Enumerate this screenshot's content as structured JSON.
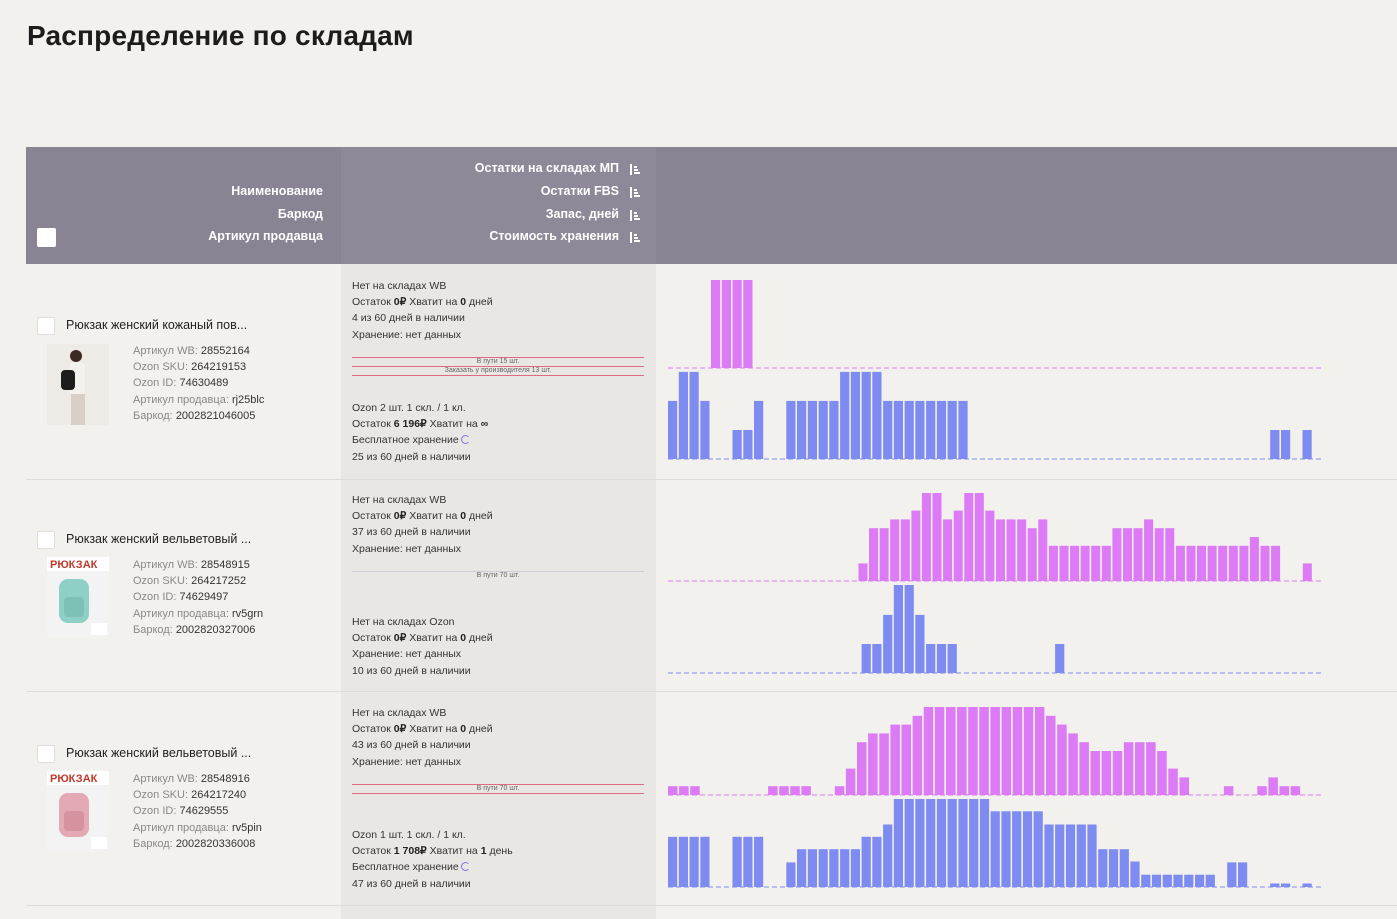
{
  "page_title": "Распределение по складам",
  "header": {
    "col_name": "Наименование",
    "col_barcode": "Баркод",
    "col_article": "Артикул продавца",
    "col_mp_stock": "Остатки на складах МП",
    "col_fbs_stock": "Остатки FBS",
    "col_reserve_days": "Запас, дней",
    "col_storage_cost": "Стоимость хранения"
  },
  "colors": {
    "wb_bar": "#dc7bf5",
    "ozon_bar": "#7e8cf2",
    "header_bg": "#8a8394"
  },
  "products": [
    {
      "name": "Рюкзак женский кожаный пов...",
      "wb_article_label": "Артикул WB:",
      "wb_article": "28552164",
      "ozon_sku_label": "Ozon SKU:",
      "ozon_sku": "264219153",
      "ozon_id_label": "Ozon ID:",
      "ozon_id": "74630489",
      "seller_article_label": "Артикул продавца:",
      "seller_article": "rj25blc",
      "barcode_label": "Баркод:",
      "barcode": "2002821046005",
      "wb": {
        "l1": "Нет на складах WB",
        "l2a": "Остаток ",
        "l2b": "0₽",
        "l2c": " Хватит на ",
        "l2d": "0",
        "l2e": " дней",
        "l3": "4 из 60 дней в наличии",
        "l4": "Хранение: нет данных"
      },
      "transit": "В пути 15 шт.",
      "order": "Заказать у производителя 13 шт.",
      "ozon": {
        "l1": "Ozon 2 шт. 1 скл. / 1 кл.",
        "l2a": "Остаток ",
        "l2b": "6 196₽",
        "l2c": " Хватит на ",
        "l2d": "∞",
        "l2e": "",
        "l3": "Бесплатное хранение",
        "l4": "25 из 60 дней в наличии"
      },
      "wb_series": [
        0,
        0,
        0,
        0,
        1,
        1,
        1,
        1,
        0,
        0,
        0,
        0,
        0,
        0,
        0,
        0,
        0,
        0,
        0,
        0,
        0,
        0,
        0,
        0,
        0,
        0,
        0,
        0,
        0,
        0,
        0,
        0,
        0,
        0,
        0,
        0,
        0,
        0,
        0,
        0,
        0,
        0,
        0,
        0,
        0,
        0,
        0,
        0,
        0,
        0,
        0,
        0,
        0,
        0,
        0,
        0,
        0,
        0,
        0,
        0,
        0
      ],
      "ozon_series": [
        0.66,
        0.99,
        0.99,
        0.66,
        0,
        0,
        0.33,
        0.33,
        0.66,
        0,
        0,
        0.66,
        0.66,
        0.66,
        0.66,
        0.66,
        0.99,
        0.99,
        0.99,
        0.99,
        0.66,
        0.66,
        0.66,
        0.66,
        0.66,
        0.66,
        0.66,
        0.66,
        0,
        0,
        0,
        0,
        0,
        0,
        0,
        0,
        0,
        0,
        0,
        0,
        0,
        0,
        0,
        0,
        0,
        0,
        0,
        0,
        0,
        0,
        0,
        0,
        0,
        0,
        0,
        0,
        0.33,
        0.33,
        0,
        0.33,
        0
      ]
    },
    {
      "name": "Рюкзак женский вельветовый ...",
      "wb_article_label": "Артикул WB:",
      "wb_article": "28548915",
      "ozon_sku_label": "Ozon SKU:",
      "ozon_sku": "264217252",
      "ozon_id_label": "Ozon ID:",
      "ozon_id": "74629497",
      "seller_article_label": "Артикул продавца:",
      "seller_article": "rv5grn",
      "barcode_label": "Баркод:",
      "barcode": "2002820327006",
      "thumb_text": "РЮКЗАК",
      "wb": {
        "l1": "Нет на складах WB",
        "l2a": "Остаток ",
        "l2b": "0₽",
        "l2c": " Хватит на ",
        "l2d": "0",
        "l2e": " дней",
        "l3": "37 из 60 дней в наличии",
        "l4": "Хранение: нет данных"
      },
      "transit": "В пути 70 шт.",
      "ozon": {
        "l1": "Нет на складах Ozon",
        "l2a": "Остаток ",
        "l2b": "0₽",
        "l2c": " Хватит на ",
        "l2d": "0",
        "l2e": " дней",
        "l3": "Хранение: нет данных",
        "l4": "10 из 60 дней в наличии"
      },
      "wb_series": [
        0,
        0,
        0,
        0,
        0,
        0,
        0,
        0,
        0,
        0,
        0,
        0,
        0,
        0,
        0,
        0,
        0,
        0,
        0.2,
        0.6,
        0.6,
        0.7,
        0.7,
        0.8,
        1,
        1,
        0.7,
        0.8,
        1,
        1,
        0.8,
        0.7,
        0.7,
        0.7,
        0.6,
        0.7,
        0.4,
        0.4,
        0.4,
        0.4,
        0.4,
        0.4,
        0.6,
        0.6,
        0.6,
        0.7,
        0.6,
        0.6,
        0.4,
        0.4,
        0.4,
        0.4,
        0.4,
        0.4,
        0.4,
        0.5,
        0.4,
        0.4,
        0,
        0,
        0.2,
        0
      ],
      "ozon_series": [
        0,
        0,
        0,
        0,
        0,
        0,
        0,
        0,
        0,
        0,
        0,
        0,
        0,
        0,
        0,
        0,
        0,
        0,
        0.33,
        0.33,
        0.66,
        1,
        1,
        0.66,
        0.33,
        0.33,
        0.33,
        0,
        0,
        0,
        0,
        0,
        0,
        0,
        0,
        0,
        0.33,
        0,
        0,
        0,
        0,
        0,
        0,
        0,
        0,
        0,
        0,
        0,
        0,
        0,
        0,
        0,
        0,
        0,
        0,
        0,
        0,
        0,
        0,
        0,
        0
      ]
    },
    {
      "name": "Рюкзак женский вельветовый ...",
      "wb_article_label": "Артикул WB:",
      "wb_article": "28548916",
      "ozon_sku_label": "Ozon SKU:",
      "ozon_sku": "264217240",
      "ozon_id_label": "Ozon ID:",
      "ozon_id": "74629555",
      "seller_article_label": "Артикул продавца:",
      "seller_article": "rv5pin",
      "barcode_label": "Баркод:",
      "barcode": "2002820336008",
      "thumb_text": "РЮКЗАК",
      "wb": {
        "l1": "Нет на складах WB",
        "l2a": "Остаток ",
        "l2b": "0₽",
        "l2c": " Хватит на ",
        "l2d": "0",
        "l2e": " дней",
        "l3": "43 из 60 дней в наличии",
        "l4": "Хранение: нет данных"
      },
      "transit": "В пути 70 шт.",
      "ozon": {
        "l1": "Ozon 1 шт. 1 скл. / 1 кл.",
        "l2a": "Остаток ",
        "l2b": "1 708₽",
        "l2c": " Хватит на ",
        "l2d": "1",
        "l2e": " день",
        "l3": "Бесплатное хранение",
        "l4": "47 из 60 дней в наличии"
      },
      "wb_series": [
        0.1,
        0.1,
        0.1,
        0,
        0,
        0,
        0,
        0,
        0,
        0.1,
        0.1,
        0.1,
        0.1,
        0,
        0,
        0.1,
        0.3,
        0.6,
        0.7,
        0.7,
        0.8,
        0.8,
        0.9,
        1,
        1,
        1,
        1,
        1,
        1,
        1,
        1,
        1,
        1,
        1,
        0.9,
        0.8,
        0.7,
        0.6,
        0.5,
        0.5,
        0.5,
        0.6,
        0.6,
        0.6,
        0.5,
        0.3,
        0.2,
        0,
        0,
        0,
        0.1,
        0,
        0,
        0.1,
        0.2,
        0.1,
        0.1,
        0,
        0
      ],
      "ozon_series": [
        0.57,
        0.57,
        0.57,
        0.57,
        0,
        0,
        0.57,
        0.57,
        0.57,
        0,
        0,
        0.28,
        0.43,
        0.43,
        0.43,
        0.43,
        0.43,
        0.43,
        0.57,
        0.57,
        0.71,
        1,
        1,
        1,
        1,
        1,
        1,
        1,
        1,
        1,
        0.86,
        0.86,
        0.86,
        0.86,
        0.86,
        0.71,
        0.71,
        0.71,
        0.71,
        0.71,
        0.43,
        0.43,
        0.43,
        0.29,
        0.14,
        0.14,
        0.14,
        0.14,
        0.14,
        0.14,
        0.14,
        0,
        0.28,
        0.28,
        0,
        0,
        0.04,
        0.04,
        0,
        0.04,
        0
      ]
    }
  ]
}
